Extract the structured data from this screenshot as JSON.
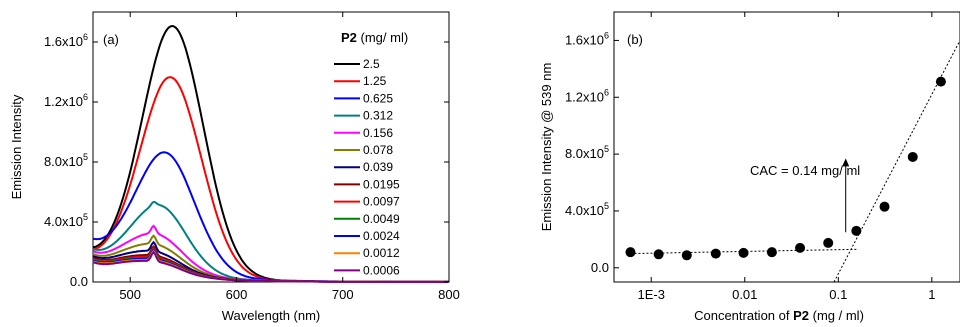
{
  "chart_data": [
    {
      "type": "line",
      "panel_label": "(a)",
      "xlabel": "Wavelength (nm)",
      "ylabel": "Emission Intensity",
      "xlim": [
        465,
        800
      ],
      "ylim": [
        0,
        1800000
      ],
      "xticks": [
        {
          "v": 500,
          "label": "500"
        },
        {
          "v": 600,
          "label": "600"
        },
        {
          "v": 700,
          "label": "700"
        },
        {
          "v": 800,
          "label": "800"
        }
      ],
      "yticks": [
        {
          "v": 0,
          "base": "0.0",
          "exp": ""
        },
        {
          "v": 400000,
          "base": "4.0x10",
          "exp": "5"
        },
        {
          "v": 800000,
          "base": "8.0x10",
          "exp": "5"
        },
        {
          "v": 1200000,
          "base": "1.2x10",
          "exp": "6"
        },
        {
          "v": 1600000,
          "base": "1.6x10",
          "exp": "6"
        }
      ],
      "legend_title_bold": "P2",
      "legend_title_rest": " (mg/ ml)",
      "legend_position": "top-right",
      "series": [
        {
          "name": "2.5",
          "color": "#000000",
          "base465": 175000,
          "peak": 1660000,
          "pos": 540,
          "sig": 29,
          "sh": 0
        },
        {
          "name": "1.25",
          "color": "#ff0000",
          "base465": 165000,
          "peak": 1320000,
          "pos": 538,
          "sig": 29,
          "sh": 0
        },
        {
          "name": "0.625",
          "color": "#0000ff",
          "base465": 250000,
          "peak": 790000,
          "pos": 533,
          "sig": 28,
          "sh": 0
        },
        {
          "name": "0.312",
          "color": "#008080",
          "base465": 195000,
          "peak": 450000,
          "pos": 527,
          "sig": 26,
          "sh": 25000
        },
        {
          "name": "0.156",
          "color": "#ff00ff",
          "base465": 185000,
          "peak": 260000,
          "pos": 523,
          "sig": 26,
          "sh": 50000
        },
        {
          "name": "0.078",
          "color": "#808000",
          "base465": 170000,
          "peak": 195000,
          "pos": 522,
          "sig": 26,
          "sh": 55000
        },
        {
          "name": "0.039",
          "color": "#000080",
          "base465": 160000,
          "peak": 150000,
          "pos": 521,
          "sig": 26,
          "sh": 60000
        },
        {
          "name": "0.0195",
          "color": "#800000",
          "base465": 150000,
          "peak": 125000,
          "pos": 521,
          "sig": 26,
          "sh": 60000
        },
        {
          "name": "0.0097",
          "color": "#ff0000",
          "base465": 145000,
          "peak": 115000,
          "pos": 521,
          "sig": 26,
          "sh": 60000
        },
        {
          "name": "0.0049",
          "color": "#008000",
          "base465": 140000,
          "peak": 110000,
          "pos": 521,
          "sig": 26,
          "sh": 60000
        },
        {
          "name": "0.0024",
          "color": "#0000ff",
          "base465": 135000,
          "peak": 105000,
          "pos": 521,
          "sig": 26,
          "sh": 60000
        },
        {
          "name": "0.0012",
          "color": "#ff8000",
          "base465": 130000,
          "peak": 100000,
          "pos": 521,
          "sig": 26,
          "sh": 60000
        },
        {
          "name": "0.0006",
          "color": "#800080",
          "base465": 125000,
          "peak": 95000,
          "pos": 521,
          "sig": 26,
          "sh": 60000
        }
      ]
    },
    {
      "type": "scatter",
      "panel_label": "(b)",
      "xscale": "log",
      "xlabel_prefix": "Concentration of ",
      "xlabel_bold": "P2",
      "xlabel_suffix": " (mg / ml)",
      "ylabel": "Emission Intensity @ 539 nm",
      "xlim": [
        0.0004,
        2.0
      ],
      "ylim": [
        -100000,
        1800000
      ],
      "xticks": [
        {
          "v": 0.001,
          "label": "1E-3"
        },
        {
          "v": 0.01,
          "label": "0.01"
        },
        {
          "v": 0.1,
          "label": "0.1"
        },
        {
          "v": 1,
          "label": "1"
        }
      ],
      "yticks": [
        {
          "v": 0,
          "base": "0.0",
          "exp": ""
        },
        {
          "v": 400000,
          "base": "4.0x10",
          "exp": "5"
        },
        {
          "v": 800000,
          "base": "8.0x10",
          "exp": "5"
        },
        {
          "v": 1200000,
          "base": "1.2x10",
          "exp": "6"
        },
        {
          "v": 1600000,
          "base": "1.6x10",
          "exp": "6"
        }
      ],
      "points": {
        "x": [
          0.0006,
          0.0012,
          0.0024,
          0.0049,
          0.0097,
          0.0195,
          0.039,
          0.078,
          0.156,
          0.312,
          0.625,
          1.25
        ],
        "y": [
          110000,
          95000,
          88000,
          100000,
          105000,
          110000,
          140000,
          175000,
          260000,
          430000,
          780000,
          1310000
        ]
      },
      "fit_low": {
        "x": [
          0.0006,
          0.156
        ],
        "y": [
          100000,
          130000
        ]
      },
      "fit_high": {
        "x": [
          0.09,
          2.0
        ],
        "y": [
          -100000,
          1600000
        ]
      },
      "annotation": "CAC = 0.14 mg/ ml",
      "arrow": {
        "x": 0.12,
        "y_from": 250000,
        "y_to": 770000
      }
    }
  ]
}
